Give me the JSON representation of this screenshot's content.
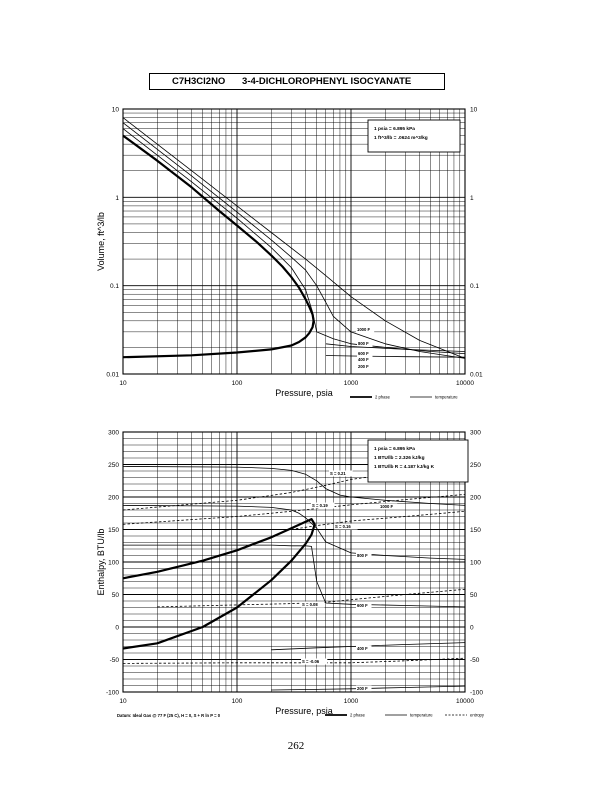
{
  "header": {
    "formula": "C7H3Cl2NO",
    "compound": "3-4-DICHLOROPHENYL ISOCYANATE"
  },
  "page_number": "262",
  "chart_data": [
    {
      "type": "line",
      "name": "volume_vs_pressure",
      "xscale": "log",
      "yscale": "log",
      "xlim": [
        10,
        10000
      ],
      "ylim": [
        0.01,
        10
      ],
      "xlabel": "Pressure,  psia",
      "ylabel": "Volume, ft^3/lb",
      "x_tick_labels": [
        "10",
        "100",
        "1000",
        "10000"
      ],
      "y_tick_labels": [
        "0.01",
        "0.1",
        "1",
        "10"
      ],
      "grid": true,
      "notes": [
        "1 psia  =  6.895 kPa",
        "1 ft^3/lb  =  .0624 m^3/kg"
      ],
      "legend": {
        "placement": "bottom-right",
        "entries": [
          "2 phase",
          "temperature"
        ]
      },
      "annotations": [
        "1000 F",
        "800 F",
        "600 F",
        "400 F",
        "200 F"
      ],
      "series": [
        {
          "name": "2 phase",
          "style": "thick",
          "x": [
            10,
            20,
            40,
            70,
            100,
            150,
            200,
            250,
            300,
            350,
            400,
            430,
            460,
            470,
            460,
            430,
            400,
            350,
            300,
            200,
            100,
            40,
            10
          ],
          "y": [
            5.0,
            2.6,
            1.3,
            0.7,
            0.48,
            0.31,
            0.22,
            0.165,
            0.125,
            0.095,
            0.07,
            0.058,
            0.047,
            0.04,
            0.034,
            0.029,
            0.026,
            0.023,
            0.021,
            0.019,
            0.0175,
            0.0163,
            0.0155
          ]
        },
        {
          "name": "1000 F",
          "style": "thin",
          "x": [
            10,
            20,
            40,
            100,
            200,
            400,
            600,
            1000,
            2000,
            4000,
            10000
          ],
          "y": [
            8.0,
            4.0,
            2.0,
            0.8,
            0.4,
            0.2,
            0.13,
            0.075,
            0.04,
            0.024,
            0.015
          ]
        },
        {
          "name": "800 F",
          "style": "thin",
          "x": [
            10,
            20,
            40,
            100,
            200,
            300,
            400,
            500,
            600,
            700,
            1000,
            2000,
            4000,
            10000
          ],
          "y": [
            7.0,
            3.5,
            1.75,
            0.68,
            0.33,
            0.21,
            0.15,
            0.1,
            0.065,
            0.045,
            0.03,
            0.022,
            0.018,
            0.015
          ]
        },
        {
          "name": "600 F",
          "style": "thin",
          "x": [
            10,
            20,
            40,
            100,
            200,
            300,
            400,
            460,
            500,
            700,
            1000,
            2000,
            5000,
            10000
          ],
          "y": [
            6.0,
            3.0,
            1.5,
            0.58,
            0.27,
            0.16,
            0.09,
            0.05,
            0.03,
            0.025,
            0.022,
            0.02,
            0.018,
            0.017
          ]
        },
        {
          "name": "400 F",
          "style": "thin",
          "x": [
            600,
            1000,
            3000,
            10000
          ],
          "y": [
            0.022,
            0.0205,
            0.019,
            0.018
          ]
        },
        {
          "name": "200 F",
          "style": "thin",
          "x": [
            600,
            1000,
            3000,
            10000
          ],
          "y": [
            0.0162,
            0.016,
            0.0157,
            0.0155
          ]
        }
      ]
    },
    {
      "type": "line",
      "name": "enthalpy_vs_pressure",
      "xscale": "log",
      "xlim": [
        10,
        10000
      ],
      "ylim": [
        -100,
        300
      ],
      "xlabel": "Pressure,  psia",
      "ylabel": "Enthalpy, BTU/lb",
      "x_tick_labels": [
        "10",
        "100",
        "1000",
        "10000"
      ],
      "y_tick_labels": [
        "300",
        "250",
        "200",
        "150",
        "100",
        "50",
        "0",
        "-50",
        "-100"
      ],
      "grid": true,
      "notes": [
        "1 psia  =  6.895 kPa",
        "1 BTU/lb  =  2.326 kJ/kg",
        "1 BTU/lb R  =  4.187 kJ/kg K"
      ],
      "legend": {
        "placement": "bottom-right",
        "entries": [
          "2 phase",
          "temperature",
          "entropy"
        ]
      },
      "footnote": "Datum:  Ideal Gas @ 77 F (25 C),  H = 0,  S + R ln P = 0",
      "annotations": [
        "S = 0.21",
        "S = 0.19",
        "S = 0.16",
        "S = 0.08",
        "S = -0.06",
        "1000 F",
        "800 F",
        "600 F",
        "400 F",
        "200 F"
      ],
      "series": [
        {
          "name": "2 phase",
          "style": "thick",
          "x": [
            10,
            20,
            50,
            100,
            200,
            300,
            400,
            450,
            480,
            450,
            400,
            300,
            200,
            100,
            50,
            20,
            10
          ],
          "y": [
            75,
            85,
            102,
            118,
            138,
            152,
            162,
            166,
            158,
            142,
            128,
            102,
            72,
            30,
            0,
            -25,
            -33
          ]
        },
        {
          "name": "1000 F",
          "style": "thin",
          "x": [
            10,
            100,
            200,
            300,
            400,
            500,
            600,
            800,
            1000,
            2000,
            5000,
            10000
          ],
          "y": [
            247,
            246,
            244,
            241,
            235,
            225,
            213,
            203,
            200,
            195,
            190,
            187
          ]
        },
        {
          "name": "800 F",
          "style": "thin",
          "x": [
            10,
            100,
            200,
            300,
            350,
            400,
            500,
            600,
            1000,
            2000,
            5000,
            10000
          ],
          "y": [
            187,
            186,
            184,
            180,
            175,
            168,
            152,
            131,
            114,
            110,
            106,
            104
          ]
        },
        {
          "name": "600 F",
          "style": "thin",
          "x": [
            10,
            100,
            200,
            300,
            400,
            450,
            500,
            600,
            1000,
            3000,
            10000
          ],
          "y": [
            126,
            126,
            126,
            125,
            125,
            124,
            70,
            37,
            35,
            33,
            31
          ]
        },
        {
          "name": "400 F",
          "style": "thin",
          "x": [
            200,
            500,
            1000,
            3000,
            10000
          ],
          "y": [
            -35,
            -32,
            -30,
            -27,
            -24
          ]
        },
        {
          "name": "200 F",
          "style": "thin",
          "x": [
            200,
            500,
            1000,
            3000,
            10000
          ],
          "y": [
            -97,
            -96,
            -95,
            -93,
            -91
          ]
        },
        {
          "name": "S = 0.21",
          "style": "dashed",
          "x": [
            10,
            100,
            300,
            600,
            1000,
            3000,
            10000
          ],
          "y": [
            180,
            195,
            207,
            218,
            227,
            238,
            248
          ]
        },
        {
          "name": "S = 0.19",
          "style": "dashed",
          "x": [
            10,
            100,
            300,
            1000,
            3000,
            10000
          ],
          "y": [
            158,
            170,
            178,
            188,
            196,
            204
          ]
        },
        {
          "name": "S = 0.16",
          "style": "dashed",
          "x": [
            300,
            500,
            1000,
            3000,
            10000
          ],
          "y": [
            150,
            156,
            163,
            170,
            178
          ]
        },
        {
          "name": "S = 0.08",
          "style": "dashed",
          "x": [
            20,
            100,
            300,
            600,
            1000,
            3000,
            10000
          ],
          "y": [
            31,
            34,
            36,
            38,
            42,
            50,
            58
          ]
        },
        {
          "name": "S = -0.06",
          "style": "dashed",
          "x": [
            10,
            100,
            500,
            1000,
            3000,
            10000
          ],
          "y": [
            -56,
            -55,
            -55,
            -55,
            -52,
            -48
          ]
        }
      ]
    }
  ]
}
